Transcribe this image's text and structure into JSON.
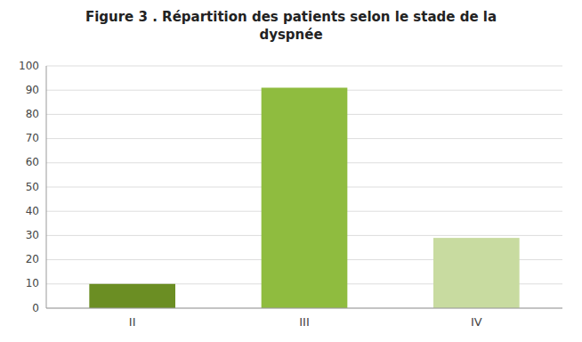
{
  "chart_data": {
    "type": "bar",
    "title": "Figure 3 . Répartition des patients selon le stade de la\ndyspnée",
    "categories": [
      "II",
      "III",
      "IV"
    ],
    "values": [
      10,
      91,
      29
    ],
    "colors": [
      "#6b8e23",
      "#8fbc3f",
      "#c8dba0"
    ],
    "ylim": [
      0,
      100
    ],
    "yticks": [
      0,
      10,
      20,
      30,
      40,
      50,
      60,
      70,
      80,
      90,
      100
    ],
    "grid": true
  }
}
